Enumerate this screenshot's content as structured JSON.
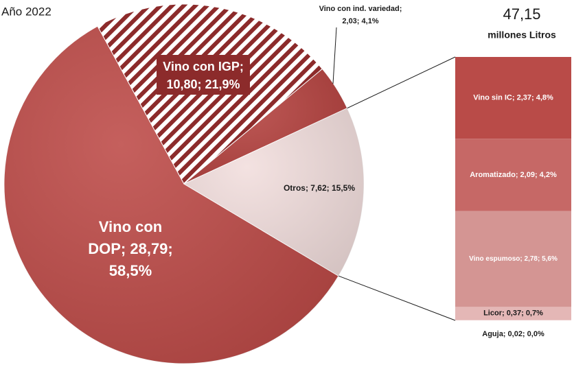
{
  "chart_data": {
    "type": "pie-of-bar",
    "title": "Año 2022",
    "total_label": "47,15",
    "total_unit": "millones Litros",
    "pie": {
      "categories": [
        "Vino con DOP",
        "Vino con IGP",
        "Vino con ind. variedad",
        "Otros"
      ],
      "values": [
        28.79,
        10.8,
        2.03,
        7.62
      ],
      "percents": [
        58.5,
        21.9,
        4.1,
        15.5
      ],
      "value_labels": [
        [
          "Vino con",
          "DOP; 28,79;",
          "58,5%"
        ],
        [
          "Vino con IGP;",
          "10,80; 21,9%"
        ],
        [
          "Vino con ind. variedad;",
          "2,03; 4,1%"
        ],
        [
          "Otros; 7,62; 15,5%"
        ]
      ],
      "colors": [
        "#bd4a47",
        "#8c2b2b",
        "#b5423f",
        "#f2dedd"
      ],
      "hatched_index": 1,
      "label_colors": [
        "#ffffff",
        "#ffffff",
        "#1a1a1a",
        "#1a1a1a"
      ]
    },
    "bar": {
      "categories": [
        "Vino sin IC",
        "Aromatizado",
        "Vino espumoso",
        "Licor",
        "Aguja"
      ],
      "values": [
        2.37,
        2.09,
        2.78,
        0.37,
        0.02
      ],
      "percents": [
        4.8,
        4.2,
        5.6,
        0.7,
        0.0
      ],
      "value_labels": [
        "Vino sin IC; 2,37; 4,8%",
        "Aromatizado; 2,09; 4,2%",
        "Vino espumoso; 2,78; 5,6%",
        "Licor; 0,37; 0,7%",
        "Aguja; 0,02; 0,0%"
      ],
      "colors": [
        "#b94b48",
        "#c66866",
        "#d49593",
        "#e4b7b6",
        "#eccbca"
      ],
      "label_colors": [
        "#ffffff",
        "#ffffff",
        "#ffffff",
        "#1a1a1a",
        "#1a1a1a"
      ]
    }
  }
}
